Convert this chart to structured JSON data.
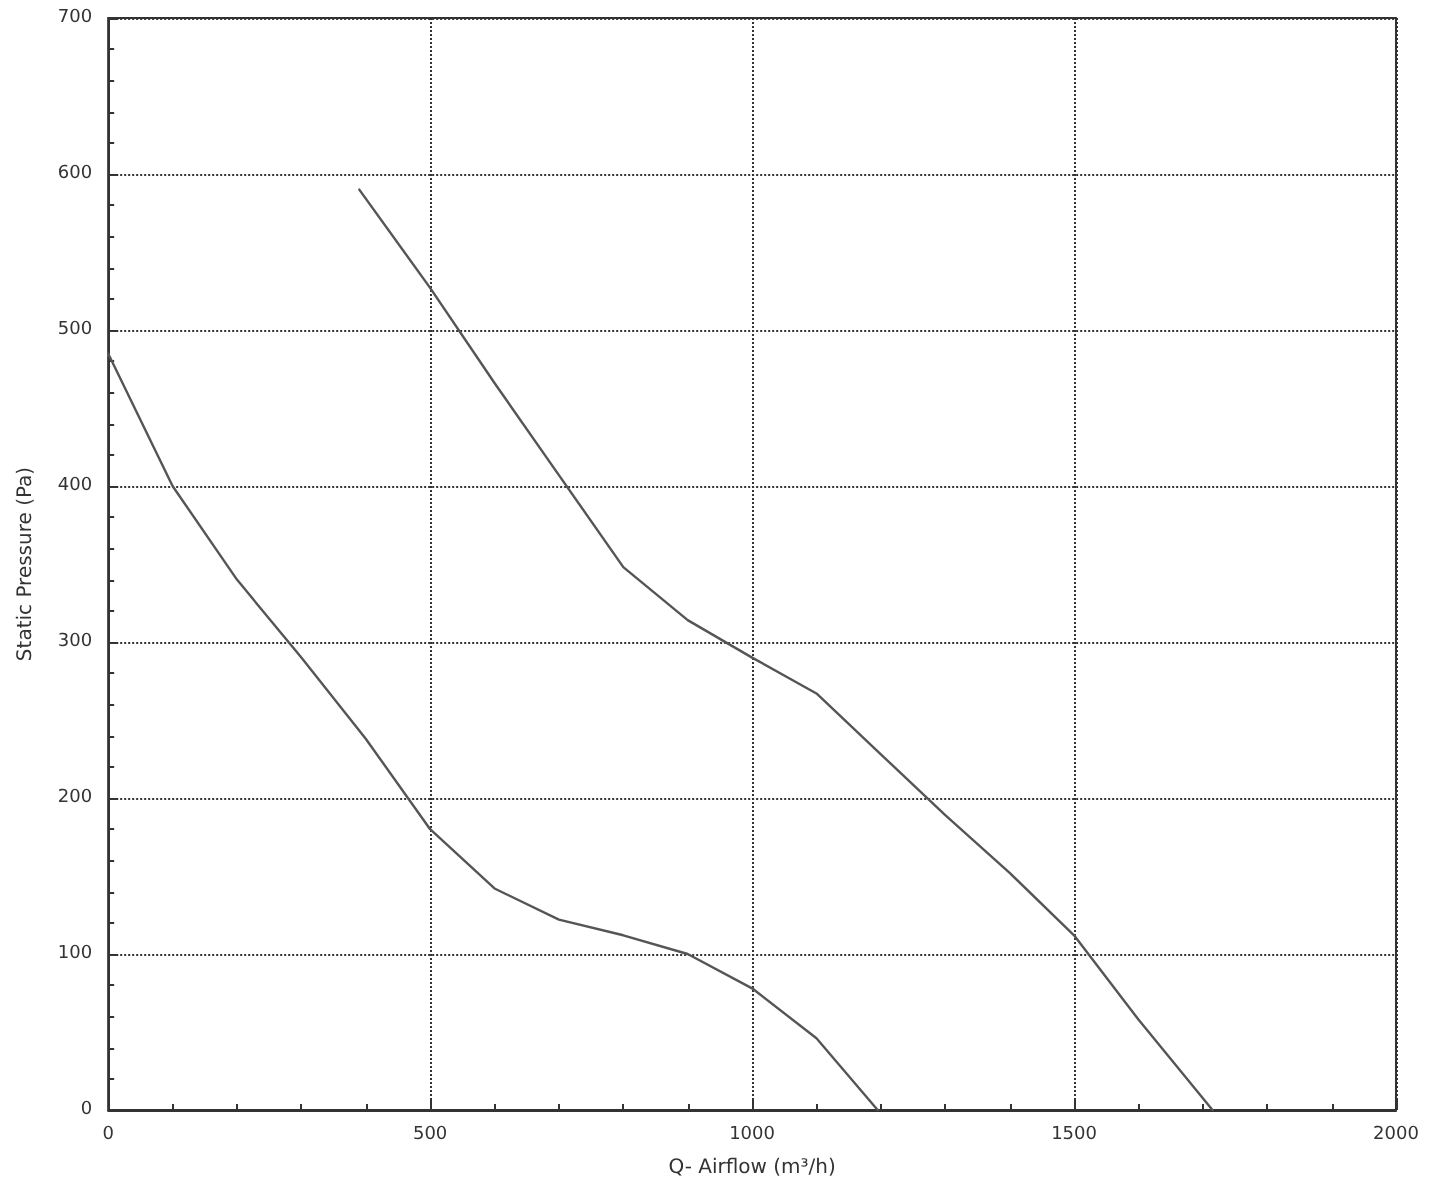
{
  "chart_data": {
    "type": "line",
    "xlabel": "Q- Airflow (m³/h)",
    "ylabel": "Static Pressure (Pa)",
    "xlim": [
      0,
      2000
    ],
    "xticks": [
      0,
      500,
      1000,
      1500,
      2000
    ],
    "ylim": [
      0,
      700
    ],
    "yticks": [
      0,
      100,
      200,
      300,
      400,
      500,
      600,
      700
    ],
    "grid": true,
    "marker": "none",
    "line_style": "solid",
    "series": [
      {
        "color": "#555555",
        "x": [
          0,
          100,
          200,
          300,
          400,
          500,
          600,
          700,
          800,
          900,
          1000,
          1100,
          1195
        ],
        "values": [
          485,
          400,
          340,
          290,
          238,
          180,
          142,
          122,
          112,
          100,
          78,
          46,
          0
        ]
      },
      {
        "color": "#555555",
        "x": [
          390,
          500,
          600,
          700,
          800,
          900,
          1000,
          1100,
          1200,
          1300,
          1400,
          1500,
          1600,
          1715
        ],
        "values": [
          590,
          527,
          466,
          407,
          348,
          314,
          290,
          267,
          228,
          189,
          152,
          112,
          58,
          0
        ]
      }
    ]
  }
}
